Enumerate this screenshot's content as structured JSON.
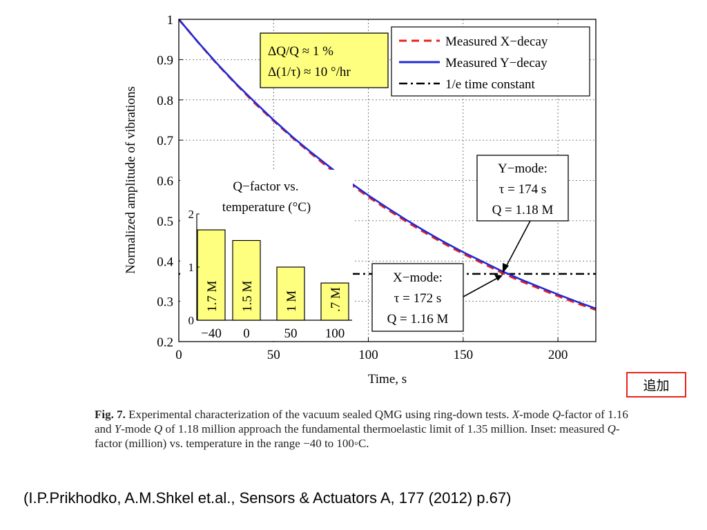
{
  "chart_data": {
    "type": "line",
    "xlabel": "Time, s",
    "ylabel": "Normalized amplitude of vibrations",
    "xlim": [
      0,
      220
    ],
    "ylim": [
      0.2,
      1
    ],
    "xticks": [
      "0",
      "50",
      "100",
      "150",
      "200"
    ],
    "yticks": [
      "0.2",
      "0.3",
      "0.4",
      "0.5",
      "0.6",
      "0.7",
      "0.8",
      "0.9",
      "1"
    ],
    "grid": true,
    "legend_position": "top-right",
    "series": [
      {
        "name": "Measured X−decay",
        "style": "dashed",
        "color": "#e8211c",
        "x": [
          0,
          10,
          20,
          30,
          40,
          50,
          60,
          70,
          80,
          90,
          100,
          110,
          120,
          130,
          140,
          150,
          160,
          170,
          180,
          190,
          200,
          210,
          220
        ],
        "y": [
          1.0,
          0.944,
          0.89,
          0.84,
          0.792,
          0.748,
          0.706,
          0.666,
          0.628,
          0.593,
          0.559,
          0.528,
          0.498,
          0.47,
          0.443,
          0.418,
          0.395,
          0.372,
          0.351,
          0.332,
          0.313,
          0.295,
          0.279
        ]
      },
      {
        "name": "Measured Y−decay",
        "style": "solid",
        "color": "#1f2ad6",
        "x": [
          0,
          10,
          20,
          30,
          40,
          50,
          60,
          70,
          80,
          90,
          100,
          110,
          120,
          130,
          140,
          150,
          160,
          170,
          180,
          190,
          200,
          210,
          220
        ],
        "y": [
          1.0,
          0.944,
          0.891,
          0.841,
          0.795,
          0.75,
          0.708,
          0.669,
          0.632,
          0.596,
          0.563,
          0.532,
          0.502,
          0.474,
          0.447,
          0.422,
          0.399,
          0.376,
          0.355,
          0.336,
          0.317,
          0.299,
          0.282
        ]
      },
      {
        "name": "1/e time constant",
        "style": "dashdot",
        "color": "#000000",
        "x": [
          0,
          220
        ],
        "y": [
          0.368,
          0.368
        ]
      }
    ],
    "annotations": {
      "top_box": [
        "ΔQ/Q ≈ 1 %",
        "Δ(1/τ) ≈ 10 °/hr"
      ],
      "y_mode": [
        "Y−mode:",
        "τ = 174 s",
        "Q = 1.18 M"
      ],
      "x_mode": [
        "X−mode:",
        "τ = 172 s",
        "Q = 1.16 M"
      ]
    },
    "inset": {
      "type": "bar",
      "title": [
        "Q−factor vs.",
        "temperature (°C)"
      ],
      "categories": [
        "−40",
        "0",
        "50",
        "100"
      ],
      "values": [
        1.7,
        1.5,
        1,
        0.7
      ],
      "labels": [
        "1.7 M",
        "1.5 M",
        "1 M",
        ".7 M"
      ],
      "yticks": [
        "0",
        "1",
        "2"
      ],
      "ylim": [
        0,
        2
      ]
    }
  },
  "figure": {
    "caption_label": "Fig. 7.",
    "caption_parts": [
      " Experimental characterization of the vacuum sealed QMG using ring-down tests. ",
      "X",
      "-mode ",
      "Q",
      "-factor of 1.16 and ",
      "Y",
      "-mode ",
      "Q",
      " of 1.18 million approach the fundamental thermoelastic limit of 1.35 million. Inset: measured ",
      "Q",
      "-factor (million) vs. temperature in the range −40 to 100◦C."
    ]
  },
  "slide": {
    "credit": "(I.P.Prikhodko, A.M.Shkel et.al., Sensors & Actuators A, 177 (2012) p.67)",
    "tag": "追加"
  }
}
